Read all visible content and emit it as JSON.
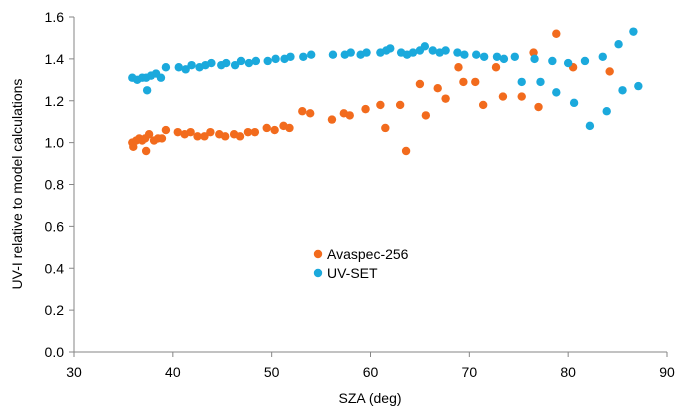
{
  "chart_data": {
    "type": "scatter",
    "title": "",
    "xlabel": "SZA (deg)",
    "ylabel": "UV-I relative to model calculations",
    "xlim": [
      30,
      90
    ],
    "ylim": [
      0.0,
      1.6
    ],
    "xticks": [
      "30",
      "40",
      "50",
      "60",
      "70",
      "80",
      "90"
    ],
    "yticks": [
      "0.0",
      "0.2",
      "0.4",
      "0.6",
      "0.8",
      "1.0",
      "1.2",
      "1.4",
      "1.6"
    ],
    "grid": false,
    "legend_position": "center",
    "series": [
      {
        "name": "Avaspec-256",
        "color": "#f26b1d",
        "points": [
          [
            35.9,
            1.0
          ],
          [
            36.0,
            0.98
          ],
          [
            36.3,
            1.01
          ],
          [
            36.6,
            1.02
          ],
          [
            36.9,
            1.01
          ],
          [
            37.2,
            1.02
          ],
          [
            37.3,
            0.96
          ],
          [
            37.6,
            1.04
          ],
          [
            38.1,
            1.01
          ],
          [
            38.5,
            1.02
          ],
          [
            38.9,
            1.02
          ],
          [
            39.3,
            1.06
          ],
          [
            40.5,
            1.05
          ],
          [
            41.2,
            1.04
          ],
          [
            41.8,
            1.05
          ],
          [
            42.5,
            1.03
          ],
          [
            43.2,
            1.03
          ],
          [
            43.8,
            1.05
          ],
          [
            44.7,
            1.04
          ],
          [
            45.3,
            1.03
          ],
          [
            46.2,
            1.04
          ],
          [
            46.8,
            1.03
          ],
          [
            47.6,
            1.05
          ],
          [
            48.3,
            1.05
          ],
          [
            49.5,
            1.07
          ],
          [
            50.3,
            1.06
          ],
          [
            51.2,
            1.08
          ],
          [
            51.8,
            1.07
          ],
          [
            53.1,
            1.15
          ],
          [
            53.9,
            1.14
          ],
          [
            56.1,
            1.11
          ],
          [
            57.3,
            1.14
          ],
          [
            57.9,
            1.13
          ],
          [
            59.5,
            1.16
          ],
          [
            61.0,
            1.18
          ],
          [
            61.5,
            1.07
          ],
          [
            63.0,
            1.18
          ],
          [
            63.6,
            0.96
          ],
          [
            65.0,
            1.28
          ],
          [
            65.6,
            1.13
          ],
          [
            66.8,
            1.26
          ],
          [
            67.6,
            1.21
          ],
          [
            68.9,
            1.36
          ],
          [
            69.4,
            1.29
          ],
          [
            70.6,
            1.29
          ],
          [
            71.4,
            1.18
          ],
          [
            72.7,
            1.36
          ],
          [
            73.4,
            1.22
          ],
          [
            75.3,
            1.22
          ],
          [
            76.5,
            1.43
          ],
          [
            77.0,
            1.17
          ],
          [
            78.8,
            1.52
          ],
          [
            80.5,
            1.36
          ],
          [
            84.2,
            1.34
          ]
        ]
      },
      {
        "name": "UV-SET",
        "color": "#1ba9dc",
        "points": [
          [
            35.9,
            1.31
          ],
          [
            36.4,
            1.3
          ],
          [
            36.9,
            1.31
          ],
          [
            37.3,
            1.31
          ],
          [
            37.4,
            1.25
          ],
          [
            37.8,
            1.32
          ],
          [
            38.3,
            1.33
          ],
          [
            38.8,
            1.31
          ],
          [
            39.3,
            1.36
          ],
          [
            40.6,
            1.36
          ],
          [
            41.3,
            1.35
          ],
          [
            41.9,
            1.37
          ],
          [
            42.7,
            1.36
          ],
          [
            43.3,
            1.37
          ],
          [
            43.9,
            1.38
          ],
          [
            44.9,
            1.37
          ],
          [
            45.4,
            1.38
          ],
          [
            46.3,
            1.37
          ],
          [
            46.9,
            1.39
          ],
          [
            47.7,
            1.38
          ],
          [
            48.4,
            1.39
          ],
          [
            49.6,
            1.39
          ],
          [
            50.4,
            1.4
          ],
          [
            51.3,
            1.4
          ],
          [
            51.9,
            1.41
          ],
          [
            53.2,
            1.41
          ],
          [
            54.0,
            1.42
          ],
          [
            56.2,
            1.42
          ],
          [
            57.4,
            1.42
          ],
          [
            58.0,
            1.43
          ],
          [
            59.0,
            1.42
          ],
          [
            59.6,
            1.43
          ],
          [
            61.0,
            1.43
          ],
          [
            61.6,
            1.44
          ],
          [
            62.0,
            1.45
          ],
          [
            63.1,
            1.43
          ],
          [
            63.7,
            1.42
          ],
          [
            64.3,
            1.43
          ],
          [
            65.0,
            1.44
          ],
          [
            65.5,
            1.46
          ],
          [
            66.3,
            1.44
          ],
          [
            67.0,
            1.43
          ],
          [
            67.6,
            1.44
          ],
          [
            68.8,
            1.43
          ],
          [
            69.5,
            1.42
          ],
          [
            70.7,
            1.42
          ],
          [
            71.5,
            1.41
          ],
          [
            72.8,
            1.41
          ],
          [
            73.5,
            1.4
          ],
          [
            74.6,
            1.41
          ],
          [
            75.3,
            1.29
          ],
          [
            76.6,
            1.4
          ],
          [
            77.2,
            1.29
          ],
          [
            78.4,
            1.39
          ],
          [
            78.8,
            1.24
          ],
          [
            80.0,
            1.38
          ],
          [
            80.6,
            1.19
          ],
          [
            81.7,
            1.39
          ],
          [
            82.2,
            1.08
          ],
          [
            83.5,
            1.41
          ],
          [
            83.9,
            1.15
          ],
          [
            85.1,
            1.47
          ],
          [
            85.5,
            1.25
          ],
          [
            86.6,
            1.53
          ],
          [
            87.1,
            1.27
          ]
        ]
      }
    ]
  }
}
